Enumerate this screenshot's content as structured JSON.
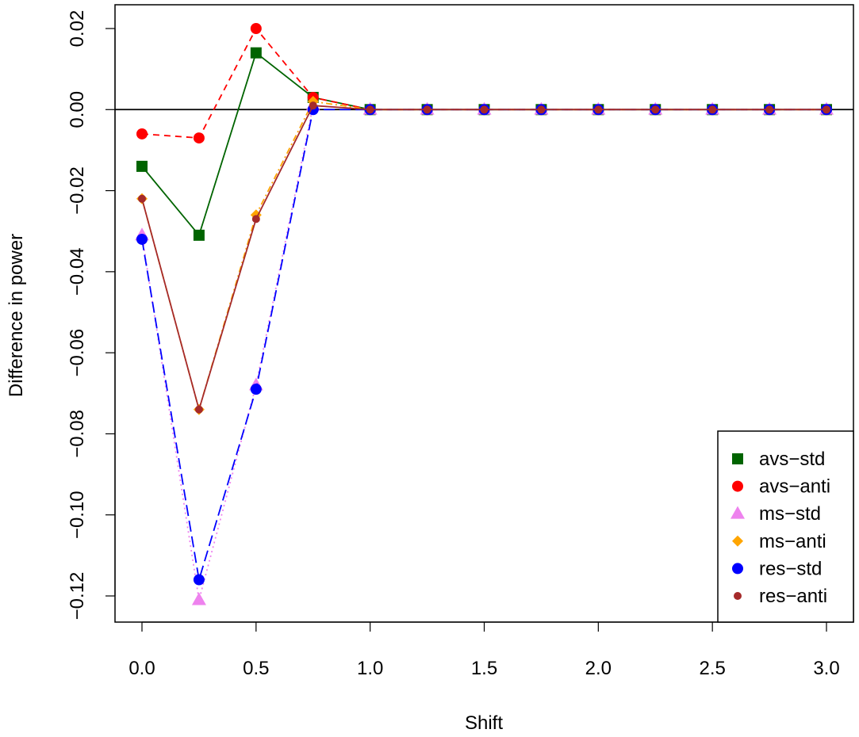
{
  "chart_data": {
    "type": "line",
    "title": "",
    "xlabel": "Shift",
    "ylabel": "Difference in power",
    "xlim": [
      0,
      3
    ],
    "ylim": [
      -0.12,
      0.02
    ],
    "x_ticks": [
      0.0,
      0.5,
      1.0,
      1.5,
      2.0,
      2.5,
      3.0
    ],
    "x_tick_labels": [
      "0.0",
      "0.5",
      "1.0",
      "1.5",
      "2.0",
      "2.5",
      "3.0"
    ],
    "y_ticks": [
      -0.12,
      -0.1,
      -0.08,
      -0.06,
      -0.04,
      -0.02,
      0.0,
      0.02
    ],
    "y_tick_labels": [
      "−0.12",
      "−0.10",
      "−0.08",
      "−0.06",
      "−0.04",
      "−0.02",
      "0.00",
      "0.02"
    ],
    "reference_line_y": 0,
    "x": [
      0,
      0.25,
      0.5,
      0.75,
      1.0,
      1.25,
      1.5,
      1.75,
      2.0,
      2.25,
      2.5,
      2.75,
      3.0
    ],
    "legend_position": "bottom-right",
    "series": [
      {
        "name": "avs−std",
        "color": "#006400",
        "marker": "square",
        "line": "solid",
        "values": [
          -0.014,
          -0.031,
          0.014,
          0.003,
          0,
          0,
          0,
          0,
          0,
          0,
          0,
          0,
          0
        ]
      },
      {
        "name": "avs−anti",
        "color": "#ff0000",
        "marker": "circle",
        "line": "dashed",
        "values": [
          -0.006,
          -0.007,
          0.02,
          0.003,
          0,
          0,
          0,
          0,
          0,
          0,
          0,
          0,
          0
        ]
      },
      {
        "name": "ms−std",
        "color": "#ee82ee",
        "marker": "triangle",
        "line": "dotted",
        "values": [
          -0.031,
          -0.121,
          -0.068,
          0.001,
          0,
          0,
          0,
          0,
          0,
          0,
          0,
          0,
          0
        ]
      },
      {
        "name": "ms−anti",
        "color": "#ffa500",
        "marker": "diamond",
        "line": "dotdash",
        "values": [
          -0.022,
          -0.074,
          -0.026,
          0.002,
          0,
          0,
          0,
          0,
          0,
          0,
          0,
          0,
          0
        ]
      },
      {
        "name": "res−std",
        "color": "#0000ff",
        "marker": "circle",
        "line": "longdash",
        "values": [
          -0.032,
          -0.116,
          -0.069,
          0.0,
          0,
          0,
          0,
          0,
          0,
          0,
          0,
          0,
          0
        ]
      },
      {
        "name": "res−anti",
        "color": "#a52a2a",
        "marker": "smallcircle",
        "line": "solid",
        "values": [
          -0.022,
          -0.074,
          -0.027,
          0.001,
          0,
          0,
          0,
          0,
          0,
          0,
          0,
          0,
          0
        ]
      }
    ]
  }
}
